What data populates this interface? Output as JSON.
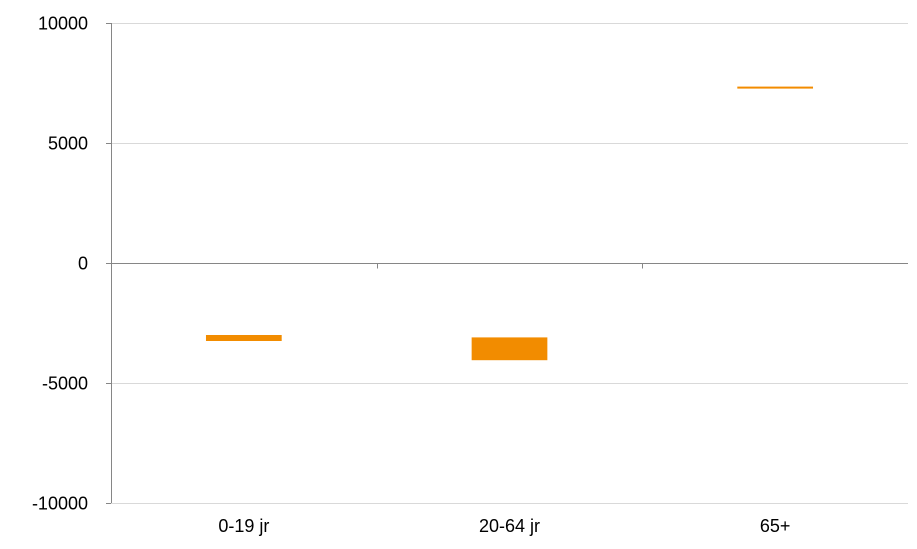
{
  "chart_data": {
    "type": "bar",
    "categories": [
      "0-19 jr",
      "20-64 jr",
      "65+"
    ],
    "series": [
      {
        "low": -3250,
        "high": -3000
      },
      {
        "low": -4050,
        "high": -3100
      },
      {
        "low": 7300,
        "high": 7350
      }
    ],
    "yticks": [
      "10000",
      "5000",
      "0",
      "-5000",
      "-10000"
    ],
    "ylim": [
      -10000,
      10000
    ],
    "grid": true,
    "colors": {
      "bar": "#f28c00",
      "grid": "#d9d9d9",
      "axis": "#868686"
    }
  }
}
